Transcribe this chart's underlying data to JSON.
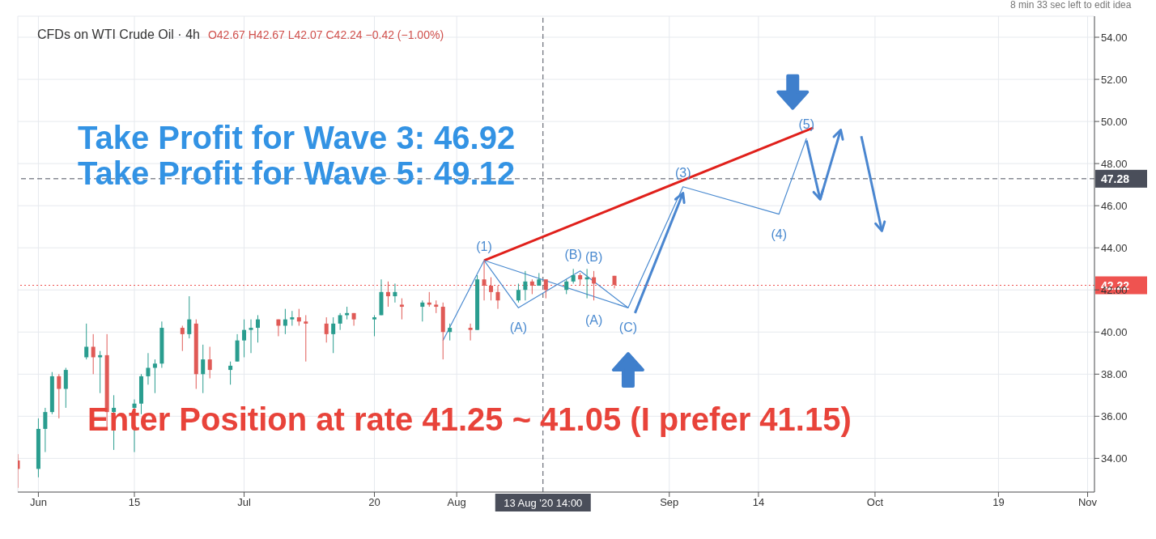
{
  "chart_data": {
    "type": "candlestick",
    "title": "CFDs on WTI Crude Oil · 4h",
    "subtitle": "O42.67 H42.67 L42.07 C42.24 −0.42 (−1.00%)",
    "x": [
      "2020-05-29",
      "2020-06-01",
      "2020-06-02",
      "2020-06-03",
      "2020-06-04",
      "2020-06-05",
      "2020-06-08",
      "2020-06-09",
      "2020-06-10",
      "2020-06-11",
      "2020-06-12",
      "2020-06-15",
      "2020-06-16",
      "2020-06-17",
      "2020-06-18",
      "2020-06-19",
      "2020-06-22",
      "2020-06-23",
      "2020-06-24",
      "2020-06-25",
      "2020-06-26",
      "2020-06-29",
      "2020-06-30",
      "2020-07-01",
      "2020-07-02",
      "2020-07-03",
      "2020-07-06",
      "2020-07-07",
      "2020-07-08",
      "2020-07-09",
      "2020-07-10",
      "2020-07-13",
      "2020-07-14",
      "2020-07-15",
      "2020-07-16",
      "2020-07-17",
      "2020-07-20",
      "2020-07-21",
      "2020-07-22",
      "2020-07-23",
      "2020-07-24",
      "2020-07-27",
      "2020-07-28",
      "2020-07-29",
      "2020-07-30",
      "2020-07-31",
      "2020-08-03",
      "2020-08-04",
      "2020-08-05",
      "2020-08-06",
      "2020-08-07",
      "2020-08-10",
      "2020-08-11",
      "2020-08-12",
      "2020-08-13",
      "2020-08-14",
      "2020-08-17",
      "2020-08-18",
      "2020-08-19",
      "2020-08-20",
      "2020-08-21",
      "2020-08-24"
    ],
    "ohlc": [
      [
        33.9,
        34.2,
        32.6,
        33.5
      ],
      [
        33.5,
        35.9,
        33.1,
        35.4
      ],
      [
        35.4,
        36.4,
        34.3,
        36.2
      ],
      [
        36.2,
        38.1,
        36.1,
        37.9
      ],
      [
        37.9,
        38.0,
        35.9,
        37.3
      ],
      [
        37.3,
        38.3,
        36.4,
        38.2
      ],
      [
        38.8,
        40.4,
        38.7,
        39.3
      ],
      [
        39.3,
        39.9,
        38.0,
        38.8
      ],
      [
        38.8,
        39.1,
        37.1,
        38.9
      ],
      [
        38.9,
        39.9,
        35.4,
        36.2
      ],
      [
        36.2,
        37.0,
        34.4,
        36.4
      ],
      [
        36.4,
        36.8,
        34.3,
        36.6
      ],
      [
        36.6,
        38.0,
        36.1,
        37.9
      ],
      [
        37.9,
        39.0,
        37.5,
        38.3
      ],
      [
        38.3,
        38.7,
        37.1,
        38.5
      ],
      [
        38.5,
        40.5,
        38.3,
        40.2
      ],
      [
        40.2,
        40.3,
        39.1,
        39.9
      ],
      [
        39.9,
        41.7,
        39.7,
        40.6
      ],
      [
        40.4,
        40.6,
        37.3,
        38.0
      ],
      [
        38.0,
        39.4,
        37.1,
        38.7
      ],
      [
        38.7,
        39.3,
        37.8,
        38.2
      ],
      [
        38.2,
        38.6,
        37.5,
        38.4
      ],
      [
        38.6,
        39.9,
        38.6,
        39.6
      ],
      [
        39.6,
        40.6,
        38.8,
        40.1
      ],
      [
        40.1,
        40.6,
        39.0,
        40.2
      ],
      [
        40.2,
        40.8,
        39.5,
        40.6
      ],
      [
        40.6,
        40.6,
        39.8,
        40.3
      ],
      [
        40.3,
        41.1,
        39.9,
        40.6
      ],
      [
        40.6,
        41.0,
        40.3,
        40.7
      ],
      [
        40.7,
        41.1,
        40.3,
        40.5
      ],
      [
        40.5,
        40.8,
        38.6,
        40.4
      ],
      [
        40.4,
        40.7,
        39.5,
        39.9
      ],
      [
        39.9,
        40.7,
        39.0,
        40.4
      ],
      [
        40.4,
        40.9,
        40.1,
        40.8
      ],
      [
        40.8,
        41.2,
        40.6,
        40.9
      ],
      [
        40.9,
        40.9,
        40.3,
        40.6
      ],
      [
        40.6,
        40.8,
        39.8,
        40.7
      ],
      [
        40.8,
        42.5,
        40.8,
        41.9
      ],
      [
        41.9,
        42.4,
        41.2,
        41.7
      ],
      [
        41.7,
        42.3,
        41.4,
        41.9
      ],
      [
        41.3,
        41.6,
        40.6,
        41.2
      ],
      [
        41.2,
        41.5,
        40.5,
        41.4
      ],
      [
        41.4,
        41.9,
        41.2,
        41.3
      ],
      [
        41.3,
        41.5,
        40.9,
        41.2
      ],
      [
        41.2,
        41.4,
        38.7,
        40.0
      ],
      [
        40.0,
        40.4,
        39.6,
        40.2
      ],
      [
        40.2,
        40.4,
        39.6,
        40.1
      ],
      [
        40.1,
        42.7,
        40.1,
        42.5
      ],
      [
        42.5,
        43.4,
        41.5,
        42.2
      ],
      [
        42.2,
        42.6,
        41.5,
        41.9
      ],
      [
        41.9,
        42.2,
        41.1,
        41.5
      ],
      [
        41.5,
        42.3,
        41.4,
        42.0
      ],
      [
        42.0,
        42.9,
        41.5,
        42.4
      ],
      [
        42.4,
        42.5,
        41.8,
        42.2
      ],
      [
        42.2,
        42.8,
        42.2,
        42.5
      ],
      [
        42.5,
        42.5,
        41.6,
        42.0
      ],
      [
        42.0,
        42.5,
        41.8,
        42.4
      ],
      [
        42.4,
        43.0,
        42.3,
        42.7
      ],
      [
        42.7,
        42.8,
        42.2,
        42.5
      ],
      [
        42.5,
        43.0,
        41.6,
        42.6
      ],
      [
        42.6,
        42.9,
        41.5,
        42.3
      ],
      [
        42.67,
        42.67,
        42.07,
        42.24
      ]
    ],
    "series": [
      {
        "type": "line",
        "color": "#e0201b",
        "x": [
          "2020-08-05",
          "2020-09-22"
        ],
        "values": [
          43.4,
          49.7
        ]
      },
      {
        "type": "line",
        "color": "#4a8ad0",
        "x": [
          "2020-07-30",
          "2020-08-05",
          "2020-08-10",
          "2020-08-19",
          "2020-08-26",
          "2020-09-03",
          "2020-09-17",
          "2020-09-21"
        ],
        "values": [
          39.6,
          43.4,
          41.15,
          42.9,
          41.15,
          46.9,
          45.6,
          49.2
        ]
      },
      {
        "type": "line",
        "color": "#4a8ad0",
        "x": [
          "2020-08-05",
          "2020-08-26"
        ],
        "values": [
          43.4,
          41.15
        ]
      }
    ],
    "xlim": [
      "2020-05-29",
      "2020-11-02"
    ],
    "xticks": [
      {
        "value": "2020-06-01",
        "label": "Jun"
      },
      {
        "value": "2020-06-15",
        "label": "15"
      },
      {
        "value": "2020-07-01",
        "label": "Jul"
      },
      {
        "value": "2020-07-20",
        "label": "20"
      },
      {
        "value": "2020-08-01",
        "label": "Aug"
      },
      {
        "value": "2020-09-01",
        "label": "Sep"
      },
      {
        "value": "2020-09-14",
        "label": "14"
      },
      {
        "value": "2020-10-01",
        "label": "Oct"
      },
      {
        "value": "2020-10-19",
        "label": "19"
      },
      {
        "value": "2020-11-01",
        "label": "Nov"
      }
    ],
    "ylim": [
      32.4,
      55
    ],
    "yticks": [
      {
        "value": 34,
        "label": "34.00"
      },
      {
        "value": 36,
        "label": "36.00"
      },
      {
        "value": 38,
        "label": "38.00"
      },
      {
        "value": 40,
        "label": "40.00"
      },
      {
        "value": 42,
        "label": "42.00"
      },
      {
        "value": 44,
        "label": "44.00"
      },
      {
        "value": 46,
        "label": "46.00"
      },
      {
        "value": 48,
        "label": "48.00"
      },
      {
        "value": 50,
        "label": "50.00"
      },
      {
        "value": 52,
        "label": "52.00"
      },
      {
        "value": 54,
        "label": "54.00"
      }
    ],
    "grid": true,
    "ref_lines": [
      {
        "axis": "y",
        "value": 47.28,
        "label": "47.28",
        "color": "#4a4e5a",
        "line_style": "dashed"
      },
      {
        "axis": "y",
        "value": 42.22,
        "label": "42.22",
        "color": "#ef5350",
        "line_style": "dotted"
      },
      {
        "axis": "x",
        "value": "2020-08-13T14:00",
        "label": "13 Aug '20  14:00",
        "color": "#4a4e5a",
        "line_style": "dashed"
      }
    ],
    "annotations": [
      "8 min 33 sec left to edit idea",
      "Take Profit for Wave 3: 46.92",
      "Take Profit for Wave 5: 49.12",
      "Enter Position at rate 41.25 ~ 41.05 (I prefer 41.15)",
      {
        "text": "(1)",
        "x": "2020-08-05",
        "y": 43.4
      },
      {
        "text": "(A)",
        "x": "2020-08-10",
        "y": 41.15
      },
      {
        "text": "(B)",
        "x": "2020-08-18",
        "y": 43.0
      },
      {
        "text": "(B)",
        "x": "2020-08-21",
        "y": 42.9
      },
      {
        "text": "(A)",
        "x": "2020-08-21",
        "y": 41.5
      },
      {
        "text": "(C)",
        "x": "2020-08-26",
        "y": 41.15
      },
      {
        "text": "(3)",
        "x": "2020-09-03",
        "y": 46.9
      },
      {
        "text": "(4)",
        "x": "2020-09-17",
        "y": 45.6
      },
      {
        "text": "(5)",
        "x": "2020-09-21",
        "y": 49.2
      }
    ]
  }
}
